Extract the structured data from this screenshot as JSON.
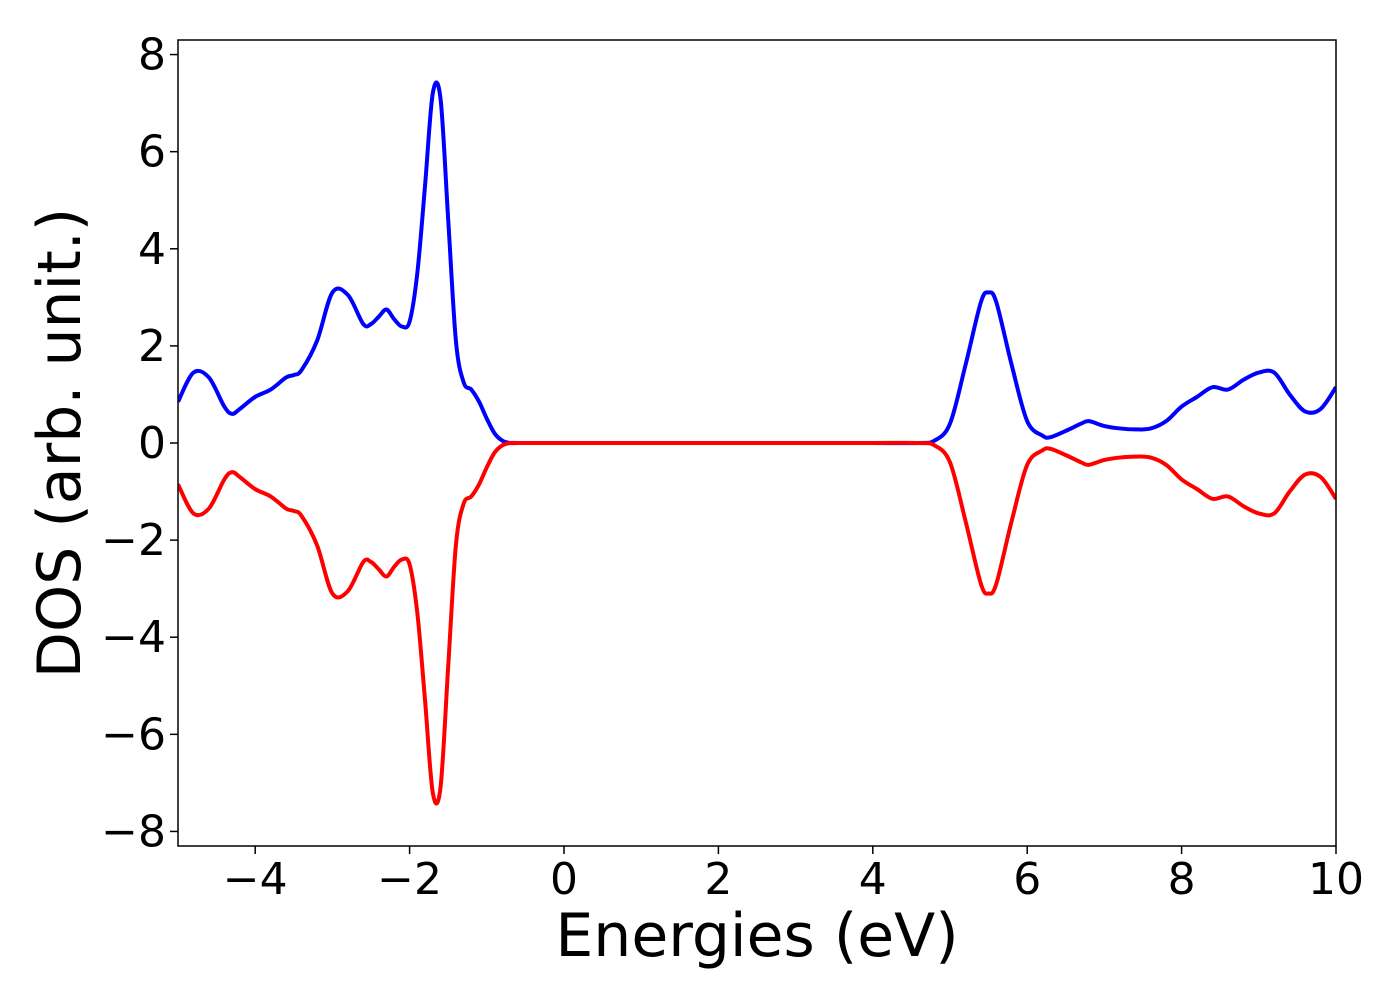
{
  "chart_data": {
    "type": "line",
    "title": "",
    "xlabel": "Energies (eV)",
    "ylabel": "DOS (arb. unit.)",
    "xlim": [
      -5,
      10
    ],
    "ylim": [
      -8.3,
      8.3
    ],
    "xticks": [
      -4,
      -2,
      0,
      2,
      4,
      6,
      8,
      10
    ],
    "xtick_labels": [
      "−4",
      "−2",
      "0",
      "2",
      "4",
      "6",
      "8",
      "10"
    ],
    "yticks": [
      8,
      6,
      4,
      2,
      0,
      -2,
      -4,
      -6,
      -8
    ],
    "ytick_labels": [
      "8",
      "6",
      "4",
      "2",
      "0",
      "−2",
      "−4",
      "−6",
      "−8"
    ],
    "grid": false,
    "legend": "none",
    "series": [
      {
        "color": "#0000ff",
        "x": [
          -5.0,
          -4.8,
          -4.6,
          -4.4,
          -4.3,
          -4.2,
          -4.0,
          -3.8,
          -3.6,
          -3.5,
          -3.4,
          -3.2,
          -3.0,
          -2.8,
          -2.6,
          -2.5,
          -2.4,
          -2.3,
          -2.2,
          -2.1,
          -2.0,
          -1.9,
          -1.8,
          -1.7,
          -1.6,
          -1.5,
          -1.4,
          -1.3,
          -1.2,
          -1.1,
          -1.0,
          -0.9,
          -0.8,
          -0.7,
          -0.6,
          -0.5,
          0.0,
          1.0,
          2.0,
          3.0,
          4.0,
          4.6,
          4.8,
          5.0,
          5.2,
          5.4,
          5.5,
          5.6,
          5.8,
          6.0,
          6.2,
          6.3,
          6.5,
          6.7,
          6.8,
          7.0,
          7.2,
          7.4,
          7.6,
          7.8,
          8.0,
          8.2,
          8.4,
          8.6,
          8.8,
          9.0,
          9.2,
          9.4,
          9.6,
          9.8,
          10.0
        ],
        "y": [
          0.85,
          1.45,
          1.35,
          0.75,
          0.6,
          0.7,
          0.95,
          1.1,
          1.35,
          1.4,
          1.5,
          2.1,
          3.1,
          3.05,
          2.45,
          2.45,
          2.6,
          2.75,
          2.55,
          2.4,
          2.5,
          3.5,
          5.3,
          7.2,
          7.1,
          4.6,
          2.1,
          1.25,
          1.1,
          0.85,
          0.5,
          0.2,
          0.05,
          0.0,
          0.0,
          0.0,
          0.0,
          0.0,
          0.0,
          0.0,
          0.0,
          0.0,
          0.05,
          0.4,
          1.6,
          2.9,
          3.1,
          2.9,
          1.6,
          0.45,
          0.15,
          0.12,
          0.25,
          0.4,
          0.45,
          0.35,
          0.3,
          0.28,
          0.3,
          0.45,
          0.75,
          0.95,
          1.15,
          1.1,
          1.3,
          1.45,
          1.45,
          1.0,
          0.65,
          0.7,
          1.15
        ]
      },
      {
        "color": "#ff0000",
        "x": [
          -5.0,
          -4.8,
          -4.6,
          -4.4,
          -4.3,
          -4.2,
          -4.0,
          -3.8,
          -3.6,
          -3.5,
          -3.4,
          -3.2,
          -3.0,
          -2.8,
          -2.6,
          -2.5,
          -2.4,
          -2.3,
          -2.2,
          -2.1,
          -2.0,
          -1.9,
          -1.8,
          -1.7,
          -1.6,
          -1.5,
          -1.4,
          -1.3,
          -1.2,
          -1.1,
          -1.0,
          -0.9,
          -0.8,
          -0.7,
          -0.6,
          -0.5,
          0.0,
          1.0,
          2.0,
          3.0,
          4.0,
          4.6,
          4.8,
          5.0,
          5.2,
          5.4,
          5.5,
          5.6,
          5.8,
          6.0,
          6.2,
          6.3,
          6.5,
          6.7,
          6.8,
          7.0,
          7.2,
          7.4,
          7.6,
          7.8,
          8.0,
          8.2,
          8.4,
          8.6,
          8.8,
          9.0,
          9.2,
          9.4,
          9.6,
          9.8,
          10.0
        ],
        "y": [
          -0.85,
          -1.45,
          -1.35,
          -0.75,
          -0.6,
          -0.7,
          -0.95,
          -1.1,
          -1.35,
          -1.4,
          -1.5,
          -2.1,
          -3.1,
          -3.05,
          -2.45,
          -2.45,
          -2.6,
          -2.75,
          -2.55,
          -2.4,
          -2.5,
          -3.5,
          -5.3,
          -7.2,
          -7.1,
          -4.6,
          -2.1,
          -1.25,
          -1.1,
          -0.85,
          -0.5,
          -0.2,
          -0.05,
          0.0,
          0.0,
          0.0,
          0.0,
          0.0,
          0.0,
          0.0,
          0.0,
          0.0,
          -0.05,
          -0.4,
          -1.6,
          -2.9,
          -3.1,
          -2.9,
          -1.6,
          -0.45,
          -0.15,
          -0.12,
          -0.25,
          -0.4,
          -0.45,
          -0.35,
          -0.3,
          -0.28,
          -0.3,
          -0.45,
          -0.75,
          -0.95,
          -1.15,
          -1.1,
          -1.3,
          -1.45,
          -1.45,
          -1.0,
          -0.65,
          -0.7,
          -1.15
        ]
      }
    ]
  }
}
